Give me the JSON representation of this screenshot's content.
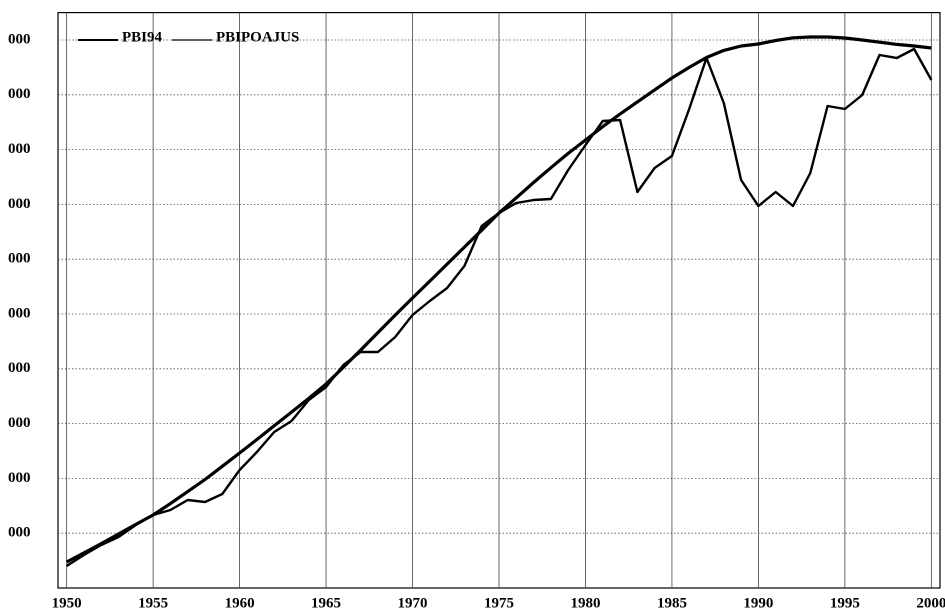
{
  "chart_data": {
    "type": "line",
    "x": [
      1950,
      1951,
      1952,
      1953,
      1954,
      1955,
      1956,
      1957,
      1958,
      1959,
      1960,
      1961,
      1962,
      1963,
      1964,
      1965,
      1966,
      1967,
      1968,
      1969,
      1970,
      1971,
      1972,
      1973,
      1974,
      1975,
      1976,
      1977,
      1978,
      1979,
      1980,
      1981,
      1982,
      1983,
      1984,
      1985,
      1986,
      1987,
      1988,
      1989,
      1990,
      1991,
      1992,
      1993,
      1994,
      1995,
      1996,
      1997,
      1998,
      1999,
      2000
    ],
    "series": [
      {
        "name": "PBI94",
        "color": "#000000",
        "values": [
          474,
          640,
          810,
          985,
          1160,
          1332,
          1540,
          1760,
          1980,
          2220,
          2464,
          2710,
          2960,
          3210,
          3460,
          3723,
          4030,
          4340,
          4660,
          4980,
          5292,
          5600,
          5910,
          6220,
          6530,
          6843,
          7120,
          7400,
          7670,
          7930,
          8175,
          8420,
          8650,
          8870,
          9090,
          9307,
          9500,
          9680,
          9810,
          9890,
          9927,
          9990,
          10040,
          10055,
          10055,
          10036,
          10000,
          9960,
          9920,
          9890,
          9854
        ]
      },
      {
        "name": "PBIPOAJUS",
        "color": "#000000",
        "values": [
          401,
          602,
          785,
          931,
          1150,
          1332,
          1423,
          1606,
          1569,
          1715,
          2153,
          2482,
          2847,
          3047,
          3431,
          3668,
          4069,
          4307,
          4307,
          4580,
          4982,
          5237,
          5474,
          5876,
          6606,
          6843,
          7026,
          7080,
          7099,
          7628,
          8084,
          8522,
          8540,
          7226,
          7664,
          7883,
          8741,
          9672,
          8850,
          7445,
          6971,
          7226,
          6971,
          7573,
          8796,
          8741,
          8996,
          9726,
          9672,
          9836,
          9270
        ]
      }
    ],
    "xlim": [
      1949.5,
      2000.5
    ],
    "xticks": [
      1950,
      1955,
      1960,
      1965,
      1970,
      1975,
      1980,
      1985,
      1990,
      1995,
      2000
    ],
    "ylim": [
      0,
      10500
    ],
    "yticks": [
      {
        "value": 1000,
        "label": "000"
      },
      {
        "value": 2000,
        "label": "000"
      },
      {
        "value": 3000,
        "label": "000"
      },
      {
        "value": 4000,
        "label": "000"
      },
      {
        "value": 5000,
        "label": "000"
      },
      {
        "value": 6000,
        "label": "000"
      },
      {
        "value": 7000,
        "label": "000"
      },
      {
        "value": 8000,
        "label": "000"
      },
      {
        "value": 9000,
        "label": "000"
      },
      {
        "value": 10000,
        "label": "000"
      }
    ],
    "grid": true,
    "legend": "top-left"
  }
}
